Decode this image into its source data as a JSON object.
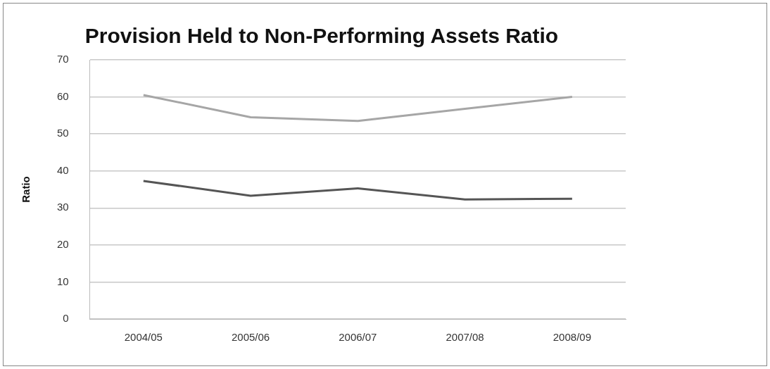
{
  "chart_data": {
    "type": "line",
    "title": "Provision Held to Non-Performing Assets Ratio",
    "ylabel": "Ratio",
    "categories": [
      "2004/05",
      "2005/06",
      "2006/07",
      "2007/08",
      "2008/09"
    ],
    "series": [
      {
        "color": "#555555",
        "values": [
          37.3,
          33.3,
          35.3,
          32.3,
          32.5
        ]
      },
      {
        "color": "#a6a6a6",
        "values": [
          60.5,
          54.5,
          53.5,
          56.8,
          60
        ]
      }
    ],
    "ylim": [
      0,
      70
    ],
    "yticks": [
      0,
      10,
      20,
      30,
      40,
      50,
      60,
      70
    ],
    "grid": "y",
    "marker": "none"
  }
}
